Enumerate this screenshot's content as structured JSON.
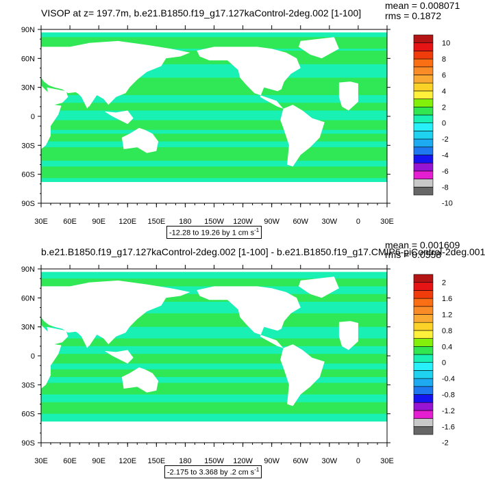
{
  "panels": [
    {
      "title": "VISOP at z= 197.7m, b.e21.B1850.f19_g17.127kaControl-2deg.002 [1-100]",
      "mean_text": "mean = 0.008071",
      "rms_text": "rms = 0.1872",
      "range_text": "-12.28 to 19.26 by 1 cm s",
      "range_unit_exp": "-1",
      "colorbar_labels": [
        "10",
        "8",
        "6",
        "4",
        "2",
        "0",
        "-2",
        "-4",
        "-6",
        "-8",
        "-10"
      ]
    },
    {
      "title": "b.e21.B1850.f19_g17.127kaControl-2deg.002 [1-100] - b.e21.B1850.f19_g17.CMIP6-piControl-2deg.001",
      "mean_text": "mean = 0.001609",
      "rms_text": "rms = 0.0558",
      "range_text": "-2.175 to 3.368 by .2 cm s",
      "range_unit_exp": "-1",
      "colorbar_labels": [
        "2",
        "1.6",
        "1.2",
        "0.8",
        "0.4",
        "0",
        "-0.4",
        "-0.8",
        "-1.2",
        "-1.6",
        "-2"
      ]
    }
  ],
  "axes": {
    "lat_ticks": [
      "90N",
      "60N",
      "30N",
      "0",
      "30S",
      "60S",
      "90S"
    ],
    "lon_ticks": [
      "30E",
      "60E",
      "90E",
      "120E",
      "150E",
      "180",
      "150W",
      "120W",
      "90W",
      "60W",
      "30W",
      "0",
      "30E"
    ]
  },
  "colors": {
    "ocean_main": "#19f0b4",
    "ocean_alt": "#32e650",
    "land": "#ffffff",
    "colorbar": [
      "#666666",
      "#c8c8c8",
      "#e61ed2",
      "#9614d2",
      "#1414f0",
      "#1e78f0",
      "#1eaaf0",
      "#1ed2f0",
      "#28f0fa",
      "#19f0b4",
      "#32e650",
      "#82f00a",
      "#fff03c",
      "#fad228",
      "#faaa32",
      "#fa8c28",
      "#fa6e14",
      "#f03c0a",
      "#e61414",
      "#b41414"
    ]
  },
  "chart_data": [
    {
      "type": "heatmap",
      "title": "VISOP at z= 197.7m, b.e21.B1850.f19_g17.127kaControl-2deg.002 [1-100]",
      "variable": "VISOP",
      "level": "z= 197.7m",
      "mean": 0.008071,
      "rms": 0.1872,
      "data_min": -12.28,
      "data_max": 19.26,
      "contour_interval": 1,
      "units": "cm s-1",
      "colorbar_levels": [
        -10,
        -9,
        -8,
        -7,
        -6,
        -5,
        -4,
        -3,
        -2,
        -1,
        0,
        1,
        2,
        3,
        4,
        5,
        6,
        7,
        8,
        9,
        10
      ],
      "lat_range": [
        -90,
        90
      ],
      "lon_range": [
        30,
        390
      ]
    },
    {
      "type": "heatmap",
      "title": "b.e21.B1850.f19_g17.127kaControl-2deg.002 [1-100] - b.e21.B1850.f19_g17.CMIP6-piControl-2deg.001",
      "mean": 0.001609,
      "rms": 0.0558,
      "data_min": -2.175,
      "data_max": 3.368,
      "contour_interval": 0.2,
      "units": "cm s-1",
      "colorbar_levels": [
        -2,
        -1.8,
        -1.6,
        -1.4,
        -1.2,
        -1,
        -0.8,
        -0.6,
        -0.4,
        -0.2,
        0,
        0.2,
        0.4,
        0.6,
        0.8,
        1,
        1.2,
        1.4,
        1.6,
        1.8,
        2
      ],
      "lat_range": [
        -90,
        90
      ],
      "lon_range": [
        30,
        390
      ]
    }
  ]
}
